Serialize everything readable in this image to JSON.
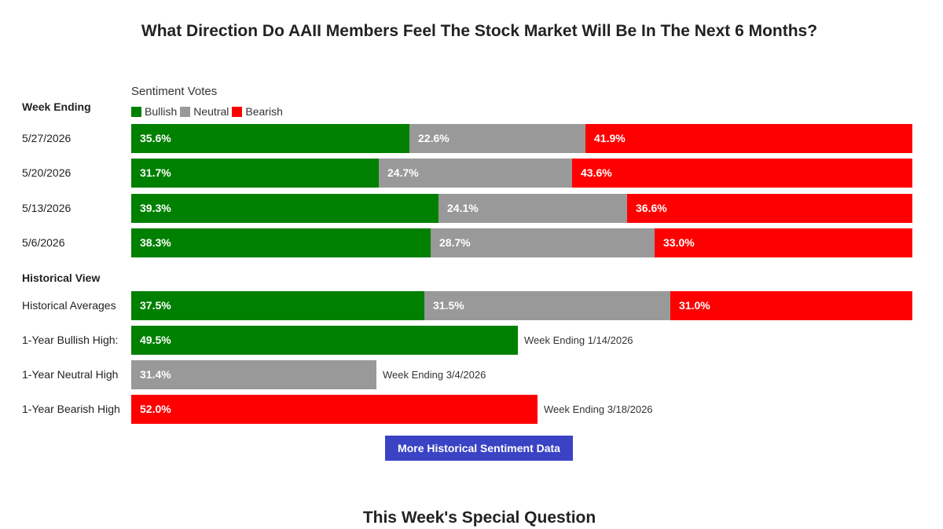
{
  "title": "What Direction Do AAII Members Feel The Stock Market Will Be In The Next 6 Months?",
  "legend_title": "Sentiment Votes",
  "week_ending_label": "Week Ending",
  "historical_view_label": "Historical View",
  "button_label": "More Historical Sentiment Data",
  "special_question_title": "This Week's Special Question",
  "colors": {
    "bullish": "#008000",
    "neutral": "#999999",
    "bearish": "#ff0000",
    "button": "#3a43c4"
  },
  "chart_data": {
    "type": "bar",
    "stacked": true,
    "orientation": "horizontal",
    "legend": [
      "Bullish",
      "Neutral",
      "Bearish"
    ],
    "weekly": [
      {
        "label": "5/27/2026",
        "values": [
          35.6,
          22.6,
          41.9
        ],
        "texts": [
          "35.6%",
          "22.6%",
          "41.9%"
        ]
      },
      {
        "label": "5/20/2026",
        "values": [
          31.7,
          24.7,
          43.6
        ],
        "texts": [
          "31.7%",
          "24.7%",
          "43.6%"
        ]
      },
      {
        "label": "5/13/2026",
        "values": [
          39.3,
          24.1,
          36.6
        ],
        "texts": [
          "39.3%",
          "24.1%",
          "36.6%"
        ]
      },
      {
        "label": "5/6/2026",
        "values": [
          38.3,
          28.7,
          33.0
        ],
        "texts": [
          "38.3%",
          "28.7%",
          "33.0%"
        ]
      }
    ],
    "historical_averages": {
      "label": "Historical Averages",
      "values": [
        37.5,
        31.5,
        31.0
      ],
      "texts": [
        "37.5%",
        "31.5%",
        "31.0%"
      ]
    },
    "highs": [
      {
        "label": "1-Year Bullish High:",
        "value": 49.5,
        "text": "49.5%",
        "kind": "bullish",
        "note": "Week Ending 1/14/2026"
      },
      {
        "label": "1-Year Neutral High",
        "value": 31.4,
        "text": "31.4%",
        "kind": "neutral",
        "note": "Week Ending 3/4/2026"
      },
      {
        "label": "1-Year Bearish High",
        "value": 52.0,
        "text": "52.0%",
        "kind": "bearish",
        "note": "Week Ending 3/18/2026"
      }
    ]
  }
}
